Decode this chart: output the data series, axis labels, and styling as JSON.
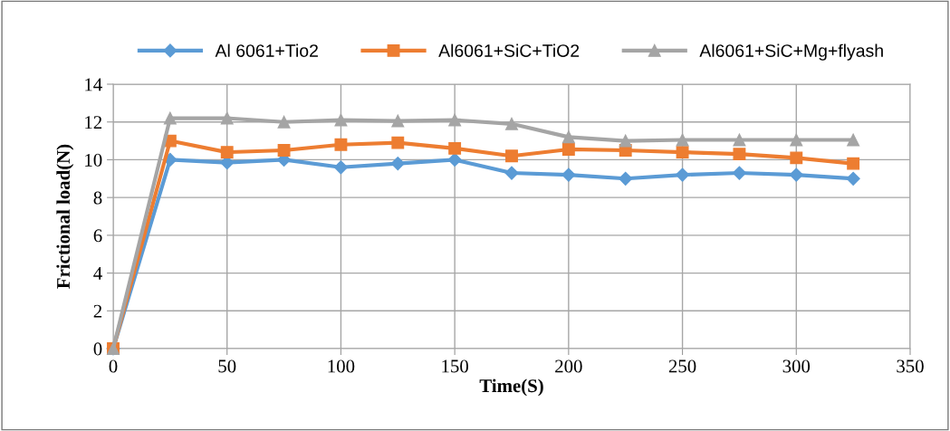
{
  "chart_data": {
    "type": "line",
    "xlabel": "Time(S)",
    "ylabel": "Frictional load(N)",
    "x": [
      0,
      25,
      50,
      75,
      100,
      125,
      150,
      175,
      200,
      225,
      250,
      275,
      300,
      325
    ],
    "series": [
      {
        "name": "Al 6061+Tio2",
        "color": "#5b9bd5",
        "marker": "diamond",
        "values": [
          0,
          10,
          9.85,
          10,
          9.6,
          9.8,
          10,
          9.3,
          9.2,
          9.0,
          9.2,
          9.3,
          9.2,
          9.0
        ]
      },
      {
        "name": "Al6061+SiC+TiO2",
        "color": "#ed7d31",
        "marker": "square",
        "values": [
          0,
          11,
          10.4,
          10.5,
          10.8,
          10.9,
          10.6,
          10.2,
          10.55,
          10.5,
          10.4,
          10.3,
          10.1,
          9.8
        ]
      },
      {
        "name": "Al6061+SiC+Mg+flyash",
        "color": "#a5a5a5",
        "marker": "triangle",
        "values": [
          0,
          12.2,
          12.2,
          12.0,
          12.1,
          12.05,
          12.1,
          11.9,
          11.2,
          11.0,
          11.05,
          11.05,
          11.05,
          11.05
        ]
      }
    ],
    "xlim": [
      0,
      350
    ],
    "xticks": [
      0,
      50,
      100,
      150,
      200,
      250,
      300,
      350
    ],
    "ylim": [
      0,
      14
    ],
    "yticks": [
      0,
      2,
      4,
      6,
      8,
      10,
      12,
      14
    ],
    "grid": true,
    "legend": "top",
    "line_style": "solid"
  }
}
